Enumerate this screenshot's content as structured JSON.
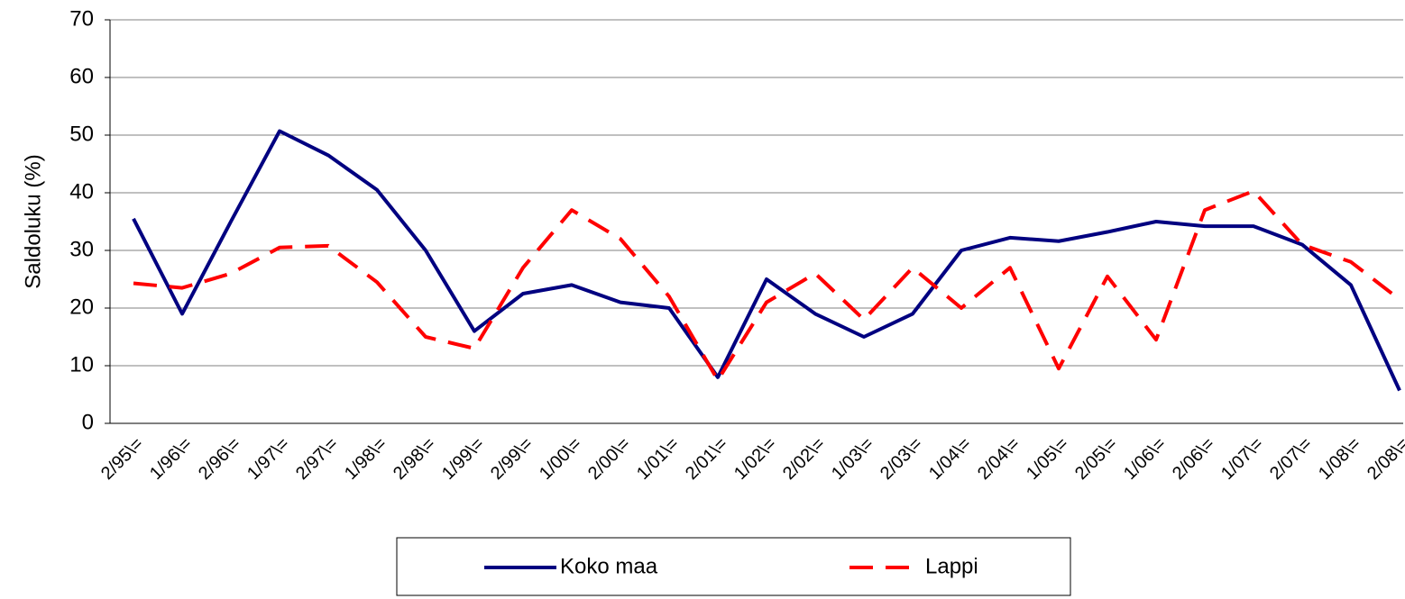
{
  "chart_data": {
    "type": "line",
    "y_label": "Saldoluku (%)",
    "categories": [
      "2/95\\=",
      "1/96\\=",
      "2/96\\=",
      "1/97\\=",
      "2/97\\=",
      "1/98\\=",
      "2/98\\=",
      "1/99\\=",
      "2/99\\=",
      "1/00\\=",
      "2/00\\=",
      "1/01\\=",
      "2/01\\=",
      "1/02\\=",
      "2/02\\=",
      "1/03\\=",
      "2/03\\=",
      "1/04\\=",
      "2/04\\=",
      "1/05\\=",
      "2/05\\=",
      "1/06\\=",
      "2/06\\=",
      "1/07\\=",
      "2/07\\=",
      "1/08\\=",
      "2/08\\="
    ],
    "series": [
      {
        "name": "Koko maa",
        "color": "#000080",
        "dash": false,
        "values": [
          35.5,
          19,
          35,
          50.7,
          46.5,
          40.5,
          30,
          16,
          22.5,
          24,
          21,
          20,
          8,
          25,
          19,
          15,
          19,
          30,
          32.2,
          31.6,
          33.2,
          35,
          34.2,
          34.2,
          31,
          24,
          5.7
        ]
      },
      {
        "name": "Lappi",
        "color": "#ff0000",
        "dash": true,
        "values": [
          24.3,
          23.5,
          26,
          30.5,
          30.8,
          24.5,
          15,
          13,
          27,
          37,
          32,
          22,
          7.5,
          21,
          26,
          18,
          27,
          20,
          27,
          9.5,
          25.5,
          14.5,
          37,
          40.3,
          31,
          28,
          21.5
        ]
      }
    ],
    "ylim": [
      0,
      70
    ],
    "yticks": [
      0,
      10,
      20,
      30,
      40,
      50,
      60,
      70
    ],
    "grid": true
  }
}
